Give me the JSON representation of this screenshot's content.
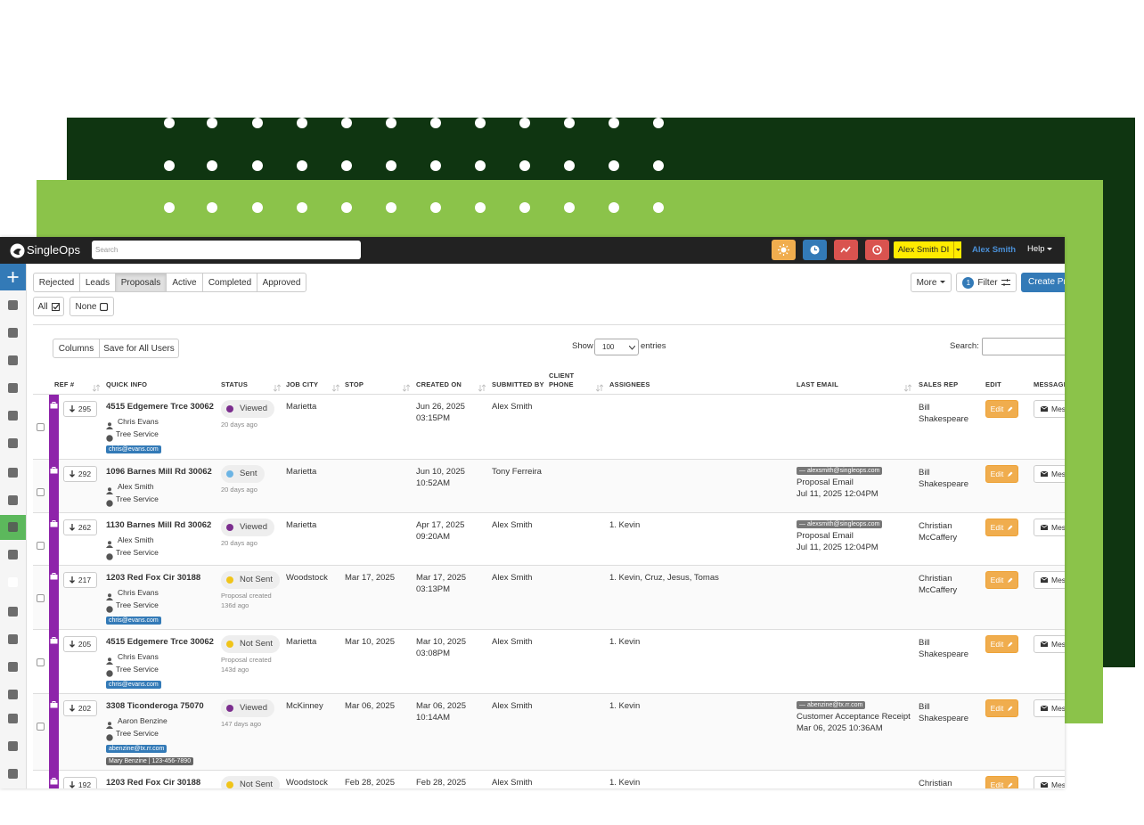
{
  "topbar": {
    "logo": "SingleOps",
    "search_placeholder": "Search",
    "user_button": "Alex Smith DI",
    "user_link": "Alex Smith",
    "help": "Help"
  },
  "tabs": [
    "Rejected",
    "Leads",
    "Proposals",
    "Active",
    "Completed",
    "Approved"
  ],
  "active_tab": 2,
  "select": {
    "all": "All",
    "none": "None"
  },
  "actions": {
    "more": "More",
    "filter_count": 1,
    "filter": "Filter",
    "create": "Create Proposal"
  },
  "toolbar": {
    "columns": "Columns",
    "save": "Save for All Users",
    "show": "Show",
    "entries_value": "100",
    "entries": "entries",
    "search": "Search:"
  },
  "table": {
    "headers": [
      "REF #",
      "QUICK INFO",
      "STATUS",
      "JOB CITY",
      "STOP",
      "CREATED ON",
      "SUBMITTED BY",
      "CLIENT PHONE",
      "ASSIGNEES",
      "LAST EMAIL",
      "SALES REP",
      "EDIT",
      "MESSAGE"
    ],
    "rows": [
      {
        "ref": 295,
        "address": "4515 Edgemere Trce 30062",
        "contact": "Chris Evans",
        "service": "Tree Service",
        "email_tag": "chris@evans.com",
        "status": "Viewed",
        "status_color": "#7b2d8e",
        "status_age": "20 days ago",
        "city": "Marietta",
        "created_date": "Jun 26, 2025",
        "created_time": "03:15PM",
        "submitted_by": "Alex Smith",
        "sales_rep": "Bill Shakespeare",
        "edit": "Edit",
        "message": "Message"
      },
      {
        "ref": 292,
        "address": "1096 Barnes Mill Rd 30062",
        "contact": "Alex Smith",
        "service": "Tree Service",
        "status": "Sent",
        "status_color": "#6cb4e4",
        "status_age": "20 days ago",
        "city": "Marietta",
        "created_date": "Jun 10, 2025",
        "created_time": "10:52AM",
        "submitted_by": "Tony Ferreira",
        "last_email_tag": "— alexsmith@singleops.com",
        "last_email_type": "Proposal Email",
        "last_email_date": "Jul 11, 2025 12:04PM",
        "sales_rep": "Bill Shakespeare",
        "edit": "Edit",
        "message": "Message"
      },
      {
        "ref": 262,
        "address": "1130 Barnes Mill Rd 30062",
        "contact": "Alex Smith",
        "service": "Tree Service",
        "status": "Viewed",
        "status_color": "#7b2d8e",
        "status_age": "20 days ago",
        "city": "Marietta",
        "created_date": "Apr 17, 2025",
        "created_time": "09:20AM",
        "submitted_by": "Alex Smith",
        "assignees": "1. Kevin",
        "last_email_tag": "— alexsmith@singleops.com",
        "last_email_type": "Proposal Email",
        "last_email_date": "Jul 11, 2025 12:04PM",
        "sales_rep": "Christian McCaffery",
        "edit": "Edit",
        "message": "Message"
      },
      {
        "ref": 217,
        "address": "1203 Red Fox Cir 30188",
        "contact": "Chris Evans",
        "service": "Tree Service",
        "email_tag": "chris@evans.com",
        "status": "Not Sent",
        "status_color": "#f0c419",
        "status_note": "Proposal created",
        "status_age": "136d ago",
        "city": "Woodstock",
        "stop": "Mar 17, 2025",
        "created_date": "Mar 17, 2025",
        "created_time": "03:13PM",
        "submitted_by": "Alex Smith",
        "assignees": "1. Kevin, Cruz, Jesus, Tomas",
        "sales_rep": "Christian McCaffery",
        "edit": "Edit",
        "message": "Message"
      },
      {
        "ref": 205,
        "address": "4515 Edgemere Trce 30062",
        "contact": "Chris Evans",
        "service": "Tree Service",
        "email_tag": "chris@evans.com",
        "status": "Not Sent",
        "status_color": "#f0c419",
        "status_note": "Proposal created",
        "status_age": "143d ago",
        "city": "Marietta",
        "stop": "Mar 10, 2025",
        "created_date": "Mar 10, 2025",
        "created_time": "03:08PM",
        "submitted_by": "Alex Smith",
        "assignees": "1. Kevin",
        "sales_rep": "Bill Shakespeare",
        "edit": "Edit",
        "message": "Message"
      },
      {
        "ref": 202,
        "address": "3308 Ticonderoga 75070",
        "contact": "Aaron Benzine",
        "service": "Tree Service",
        "email_tag": "abenzine@tx.rr.com",
        "extra_tag": "Mary Benzine | 123-456-7890",
        "status": "Viewed",
        "status_color": "#7b2d8e",
        "status_age": "147 days ago",
        "city": "McKinney",
        "stop": "Mar 06, 2025",
        "created_date": "Mar 06, 2025",
        "created_time": "10:14AM",
        "submitted_by": "Alex Smith",
        "assignees": "1. Kevin",
        "last_email_tag": "— abenzine@tx.rr.com",
        "last_email_type": "Customer Acceptance Receipt",
        "last_email_date": "Mar 06, 2025 10:36AM",
        "sales_rep": "Bill Shakespeare",
        "edit": "Edit",
        "message": "Message"
      },
      {
        "ref": 192,
        "address": "1203 Red Fox Cir 30188",
        "status": "Not Sent",
        "status_color": "#f0c419",
        "city": "Woodstock",
        "stop": "Feb 28, 2025",
        "created_date": "Feb 28, 2025",
        "submitted_by": "Alex Smith",
        "assignees": "1. Kevin",
        "sales_rep": "Christian",
        "edit": "Edit",
        "message": "Message"
      }
    ]
  }
}
